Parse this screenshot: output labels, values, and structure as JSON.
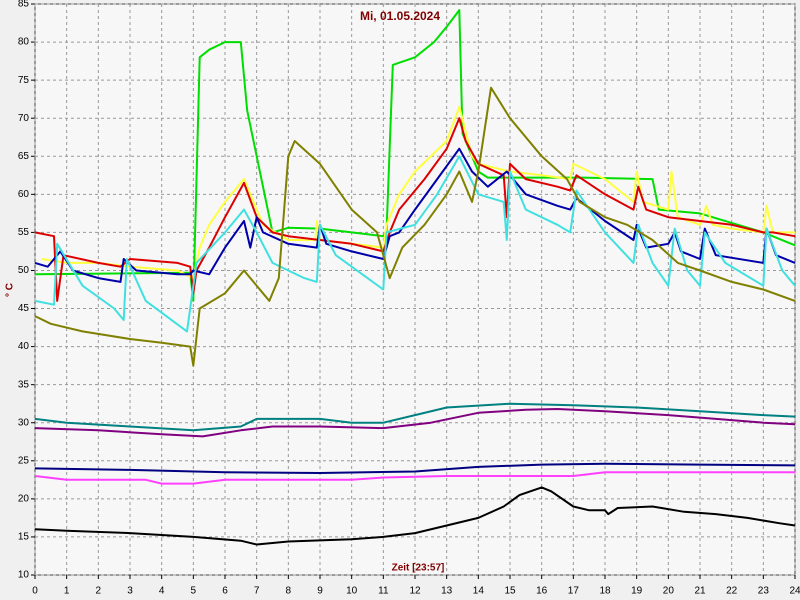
{
  "chart_data": {
    "type": "line",
    "title": "Mi, 01.05.2024",
    "xlabel": "Zeit [23:57]",
    "ylabel": "° C",
    "xlim": [
      0,
      24
    ],
    "xticks": [
      0,
      1,
      2,
      3,
      4,
      5,
      6,
      7,
      8,
      9,
      10,
      11,
      12,
      13,
      14,
      15,
      16,
      17,
      18,
      19,
      20,
      21,
      22,
      23,
      24
    ],
    "ylim": [
      10,
      85
    ],
    "yticks": [
      10,
      15,
      20,
      25,
      30,
      35,
      40,
      45,
      50,
      55,
      60,
      65,
      70,
      75,
      80,
      85
    ],
    "grid": true,
    "series": [
      {
        "color": "#00dd00",
        "x": [
          0,
          4.9,
          5.0,
          5.2,
          5.5,
          6.0,
          6.5,
          6.7,
          7.0,
          7.5,
          8,
          9,
          10,
          11,
          11.1,
          11.3,
          12,
          12.6,
          13,
          13.4,
          13.5,
          14,
          14.3,
          17.3,
          19.5,
          19.7,
          21,
          23,
          24
        ],
        "values": [
          49.5,
          49.7,
          46,
          78,
          79,
          80,
          80,
          71,
          65,
          55,
          55.6,
          55.5,
          55,
          54.5,
          55,
          77,
          78,
          80,
          82,
          84.2,
          68,
          63,
          62.2,
          62.2,
          62,
          58,
          57.5,
          55,
          53.3
        ]
      },
      {
        "color": "#ffff40",
        "x": [
          0.2,
          1,
          2,
          3,
          4.5,
          5,
          5.2,
          5.5,
          6,
          6.6,
          7.2,
          8,
          8.85,
          8.9,
          9,
          10,
          11,
          11.1,
          11.5,
          12,
          13,
          13.4,
          13.8,
          14,
          15,
          16,
          16.9,
          17,
          18,
          18.9,
          19.0,
          19.2,
          20,
          20.1,
          20.3,
          21,
          21.2,
          21.4,
          22,
          23,
          23.1,
          23.3,
          24
        ],
        "values": [
          51.5,
          51,
          51,
          50.5,
          50,
          49,
          53,
          56,
          59,
          62,
          56,
          54,
          54,
          56.5,
          54,
          53.5,
          53,
          56,
          60,
          63,
          67,
          71.5,
          65,
          64,
          63,
          62.5,
          62,
          64,
          62,
          59,
          63,
          59,
          58,
          63,
          57,
          56,
          58.5,
          56,
          55.5,
          55,
          58.5,
          55,
          55
        ]
      },
      {
        "color": "#dd0000",
        "x": [
          0,
          0.6,
          0.7,
          0.9,
          2,
          2.7,
          3.0,
          4.5,
          4.9,
          5.0,
          5.1,
          5.5,
          6,
          6.6,
          7,
          7.5,
          8,
          9,
          10,
          11,
          11.2,
          11.5,
          12.3,
          13,
          13.4,
          13.6,
          14,
          14.8,
          14.9,
          15,
          15.5,
          16.5,
          16.9,
          17.1,
          18,
          18.9,
          19.05,
          19.3,
          20,
          21,
          22,
          23,
          23.3,
          24
        ],
        "values": [
          55,
          54.5,
          46,
          52,
          51,
          50.5,
          51.5,
          51,
          50.5,
          47,
          50,
          53,
          57,
          61.5,
          57,
          55,
          54.5,
          54,
          53.5,
          52.5,
          55,
          58,
          62,
          66,
          70,
          67,
          64,
          62.5,
          57,
          64,
          62,
          61,
          60.5,
          62.5,
          60,
          58,
          61,
          58,
          57,
          56.5,
          56,
          55,
          55,
          54.5
        ]
      },
      {
        "color": "#0000aa",
        "x": [
          0,
          0.4,
          0.8,
          1.2,
          2,
          2.7,
          2.8,
          3.2,
          4.5,
          4.9,
          5,
          5.5,
          6,
          6.6,
          6.8,
          7.0,
          7.2,
          8,
          8.9,
          9.0,
          9.2,
          10,
          11,
          11.2,
          11.5,
          12,
          12.7,
          13.4,
          13.8,
          14.3,
          14.9,
          15.5,
          16.5,
          16.9,
          17.1,
          18,
          18.9,
          19.0,
          19.3,
          20.0,
          20.2,
          20.4,
          21,
          21.15,
          21.5,
          23,
          23.1,
          23.4,
          24
        ],
        "values": [
          51,
          50.5,
          52.5,
          50,
          49,
          48.5,
          51.5,
          50,
          49.5,
          49.5,
          50,
          49.5,
          53,
          56.5,
          53,
          57,
          55,
          53.5,
          53,
          56,
          53.5,
          52.5,
          51.5,
          54.5,
          55,
          58,
          62,
          66,
          63,
          61,
          63,
          60,
          58.5,
          58,
          59.5,
          56.5,
          54,
          56,
          53,
          53.5,
          55,
          52.5,
          51.5,
          55.5,
          52,
          51,
          55.5,
          52,
          51
        ]
      },
      {
        "color": "#40e0e0",
        "x": [
          0,
          0.6,
          0.7,
          1.5,
          2.5,
          2.8,
          2.9,
          3.5,
          4.8,
          5.1,
          6,
          6.6,
          7,
          7.5,
          8.5,
          8.9,
          9.0,
          9.5,
          10.5,
          11.0,
          11.1,
          12,
          12.7,
          13.4,
          14,
          14.8,
          14.9,
          15.0,
          15.5,
          16.5,
          16.9,
          17.1,
          18,
          18.9,
          19.05,
          19.5,
          20,
          20.2,
          20.6,
          21,
          21.15,
          21.8,
          23,
          23.1,
          23.6,
          24
        ],
        "values": [
          46,
          45.5,
          53.5,
          48,
          45,
          43.5,
          51.5,
          46,
          42,
          51,
          55,
          58,
          55,
          51,
          49,
          48.5,
          56,
          52,
          49,
          47.5,
          55,
          56,
          60,
          65,
          60,
          59,
          54,
          63,
          58,
          56,
          55,
          60.5,
          55,
          51,
          56,
          51,
          48,
          55.5,
          50,
          48,
          55,
          51,
          48,
          55.5,
          50,
          48
        ]
      },
      {
        "color": "#808000",
        "x": [
          0,
          0.5,
          1.5,
          3,
          4,
          4.9,
          5.0,
          5.2,
          6,
          6.6,
          7.2,
          7.4,
          7.7,
          8.0,
          8.2,
          9,
          10,
          10.8,
          11.0,
          11.2,
          11.6,
          12.3,
          13,
          13.4,
          13.8,
          14.0,
          14.4,
          15,
          16,
          16.8,
          17.2,
          18,
          18.7,
          19.5,
          20.3,
          21,
          22,
          23,
          24
        ],
        "values": [
          44,
          43,
          42,
          41,
          40.5,
          40,
          37.5,
          45,
          47,
          50,
          47,
          46,
          49,
          65,
          67,
          64,
          58,
          55,
          52,
          49,
          53,
          56,
          60,
          63,
          59,
          63,
          74,
          70,
          65,
          62,
          59,
          57,
          56,
          54,
          51,
          50,
          48.5,
          47.5,
          46
        ]
      },
      {
        "color": "#008080",
        "x": [
          0,
          1,
          3,
          5,
          6.5,
          7,
          9,
          10,
          11,
          12,
          13,
          15,
          17,
          19,
          21,
          23,
          24
        ],
        "values": [
          30.5,
          30,
          29.5,
          29,
          29.5,
          30.5,
          30.5,
          30,
          30,
          31,
          32,
          32.5,
          32.3,
          32,
          31.5,
          31,
          30.8
        ]
      },
      {
        "color": "#800080",
        "x": [
          0,
          2,
          4,
          5.3,
          6.5,
          7.5,
          9,
          11,
          12.5,
          14,
          15.5,
          16.5,
          18,
          20,
          21.5,
          23,
          24
        ],
        "values": [
          29.3,
          29,
          28.5,
          28.2,
          29,
          29.5,
          29.5,
          29.3,
          30,
          31.3,
          31.7,
          31.8,
          31.5,
          31,
          30.5,
          30,
          29.8
        ]
      },
      {
        "color": "#000080",
        "x": [
          0,
          3,
          6,
          9,
          12,
          14,
          16,
          18,
          21,
          24
        ],
        "values": [
          24,
          23.8,
          23.5,
          23.4,
          23.6,
          24.2,
          24.5,
          24.6,
          24.5,
          24.4
        ]
      },
      {
        "color": "#ff40ff",
        "x": [
          0,
          1,
          3.5,
          4,
          5,
          6,
          10,
          11,
          13,
          17,
          18,
          24
        ],
        "values": [
          23,
          22.5,
          22.5,
          22,
          22,
          22.5,
          22.5,
          22.8,
          23,
          23,
          23.5,
          23.5
        ]
      },
      {
        "color": "#000000",
        "x": [
          0,
          1,
          3,
          5,
          6.5,
          7,
          8,
          10,
          11,
          12,
          13,
          14,
          14.8,
          15.3,
          16,
          16.3,
          17,
          17.5,
          18,
          18.1,
          18.4,
          19.5,
          20.5,
          21.5,
          22.5,
          23.5,
          24
        ],
        "values": [
          16,
          15.8,
          15.5,
          15,
          14.5,
          14,
          14.4,
          14.7,
          15,
          15.5,
          16.5,
          17.5,
          19,
          20.5,
          21.5,
          21,
          19,
          18.5,
          18.5,
          18,
          18.8,
          19,
          18.3,
          18,
          17.5,
          16.8,
          16.5
        ]
      }
    ]
  }
}
